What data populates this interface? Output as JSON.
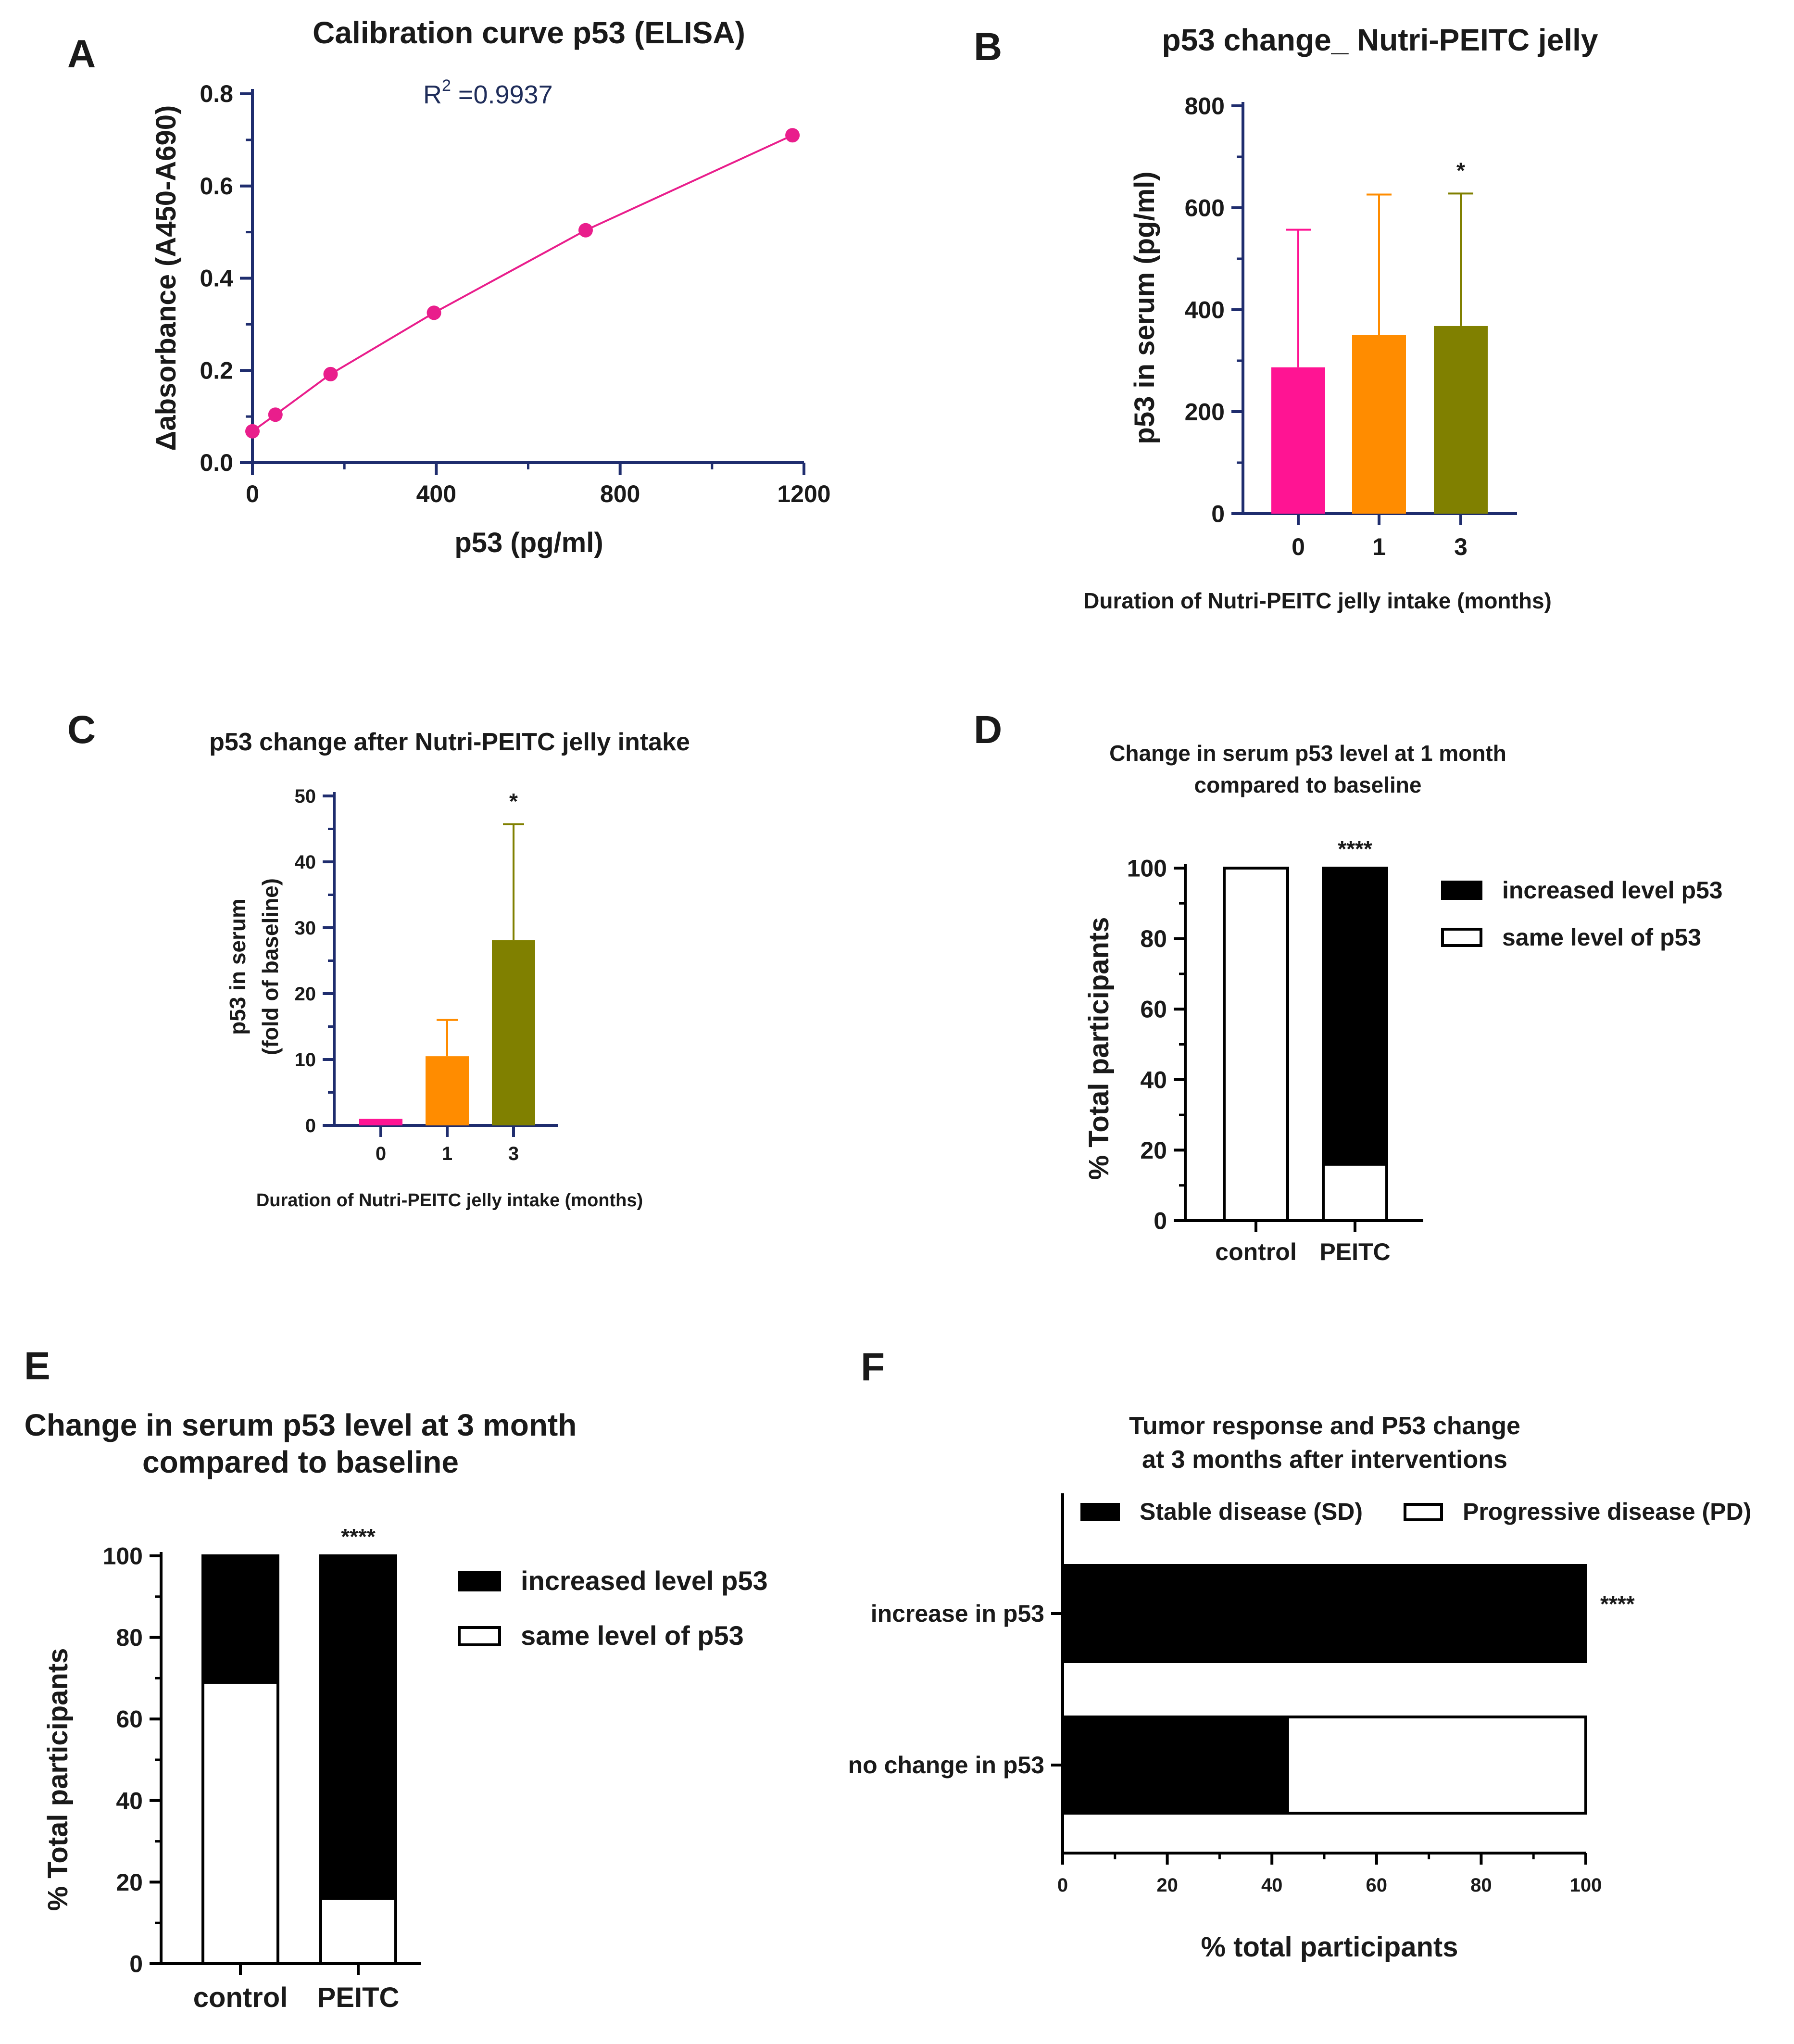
{
  "figure": {
    "panel_letters": [
      "A",
      "B",
      "C",
      "D",
      "E",
      "F"
    ]
  },
  "chart_data": [
    {
      "id": "A",
      "type": "line",
      "title": "Calibration curve p53 (ELISA)",
      "xlabel": "p53 (pg/ml)",
      "ylabel": "Δabsorbance (A450-A690)",
      "xlim": [
        0,
        1200
      ],
      "ylim": [
        0,
        0.8
      ],
      "xticks": [
        "0",
        "400",
        "800",
        "1200"
      ],
      "yticks": [
        "0.0",
        "0.2",
        "0.4",
        "0.6",
        "0.8"
      ],
      "annotation": {
        "r_label": "R",
        "r_sup": "2",
        "r_value": " =0.9937"
      },
      "series": [
        {
          "name": "calibration",
          "color": "#e91e8c",
          "x": [
            0,
            50,
            170,
            395,
            725,
            1175
          ],
          "y": [
            0.068,
            0.104,
            0.192,
            0.325,
            0.504,
            0.71
          ]
        }
      ]
    },
    {
      "id": "B",
      "type": "bar",
      "title": "p53 change_ Nutri-PEITC jelly",
      "xlabel": "Duration of Nutri-PEITC jelly intake (months)",
      "ylabel": "p53 in serum (pg/ml)",
      "ylim": [
        0,
        800
      ],
      "yticks": [
        "0",
        "200",
        "400",
        "600",
        "800"
      ],
      "categories": [
        "0",
        "1",
        "3"
      ],
      "values": [
        287,
        350,
        368
      ],
      "errors_upper": [
        557,
        626,
        628
      ],
      "colors": [
        "#ff1493",
        "#ff8c00",
        "#808000"
      ],
      "significance": [
        "",
        "",
        "*"
      ]
    },
    {
      "id": "C",
      "type": "bar",
      "title": "p53 change after Nutri-PEITC jelly intake",
      "xlabel": "Duration of Nutri-PEITC jelly intake (months)",
      "ylabel_line1": "p53 in serum",
      "ylabel_line2": "(fold of baseline)",
      "ylim": [
        0,
        50
      ],
      "yticks": [
        "0",
        "10",
        "20",
        "30",
        "40",
        "50"
      ],
      "categories": [
        "0",
        "1",
        "3"
      ],
      "values": [
        1,
        10.5,
        28.1
      ],
      "errors_upper": [
        1,
        16,
        45.7
      ],
      "colors": [
        "#ff1493",
        "#ff8c00",
        "#808000"
      ],
      "significance": [
        "",
        "",
        "*"
      ]
    },
    {
      "id": "D",
      "type": "bar",
      "stacked": true,
      "title_line1": "Change in serum p53 level at 1 month",
      "title_line2": "compared to baseline",
      "ylabel": "% Total participants",
      "ylim": [
        0,
        100
      ],
      "yticks": [
        "0",
        "20",
        "40",
        "60",
        "80",
        "100"
      ],
      "categories": [
        "control",
        "PEITC"
      ],
      "series": [
        {
          "name": "same level of p53",
          "color": "#ffffff",
          "values": [
            100,
            16
          ]
        },
        {
          "name": "increased level p53",
          "color": "#000000",
          "values": [
            0,
            84
          ]
        }
      ],
      "legend": [
        "increased level p53",
        "same level of p53"
      ],
      "significance": [
        "",
        "****"
      ]
    },
    {
      "id": "E",
      "type": "bar",
      "stacked": true,
      "title_line1": "Change in serum p53 level at 3 month",
      "title_line2": "compared to baseline",
      "ylabel": "% Total participants",
      "ylim": [
        0,
        100
      ],
      "yticks": [
        "0",
        "20",
        "40",
        "60",
        "80",
        "100"
      ],
      "categories": [
        "control",
        "PEITC"
      ],
      "series": [
        {
          "name": "same level of p53",
          "color": "#ffffff",
          "values": [
            69,
            16
          ]
        },
        {
          "name": "increased level p53",
          "color": "#000000",
          "values": [
            31,
            84
          ]
        }
      ],
      "legend": [
        "increased level p53",
        "same level of p53"
      ],
      "significance": [
        "",
        "****"
      ]
    },
    {
      "id": "F",
      "type": "bar",
      "stacked": true,
      "orientation": "horizontal",
      "title_line1": "Tumor response and P53 change",
      "title_line2": "at 3 months after interventions",
      "xlabel": "% total participants",
      "xlim": [
        0,
        100
      ],
      "xticks": [
        "0",
        "20",
        "40",
        "60",
        "80",
        "100"
      ],
      "categories": [
        "increase in p53",
        "no change in p53"
      ],
      "series": [
        {
          "name": "Stable disease (SD)",
          "color": "#000000",
          "values": [
            100,
            43
          ]
        },
        {
          "name": "Progressive disease (PD)",
          "color": "#ffffff",
          "values": [
            0,
            57
          ]
        }
      ],
      "legend": [
        "Stable disease (SD)",
        "Progressive disease (PD)"
      ],
      "significance": [
        "****",
        ""
      ]
    }
  ]
}
